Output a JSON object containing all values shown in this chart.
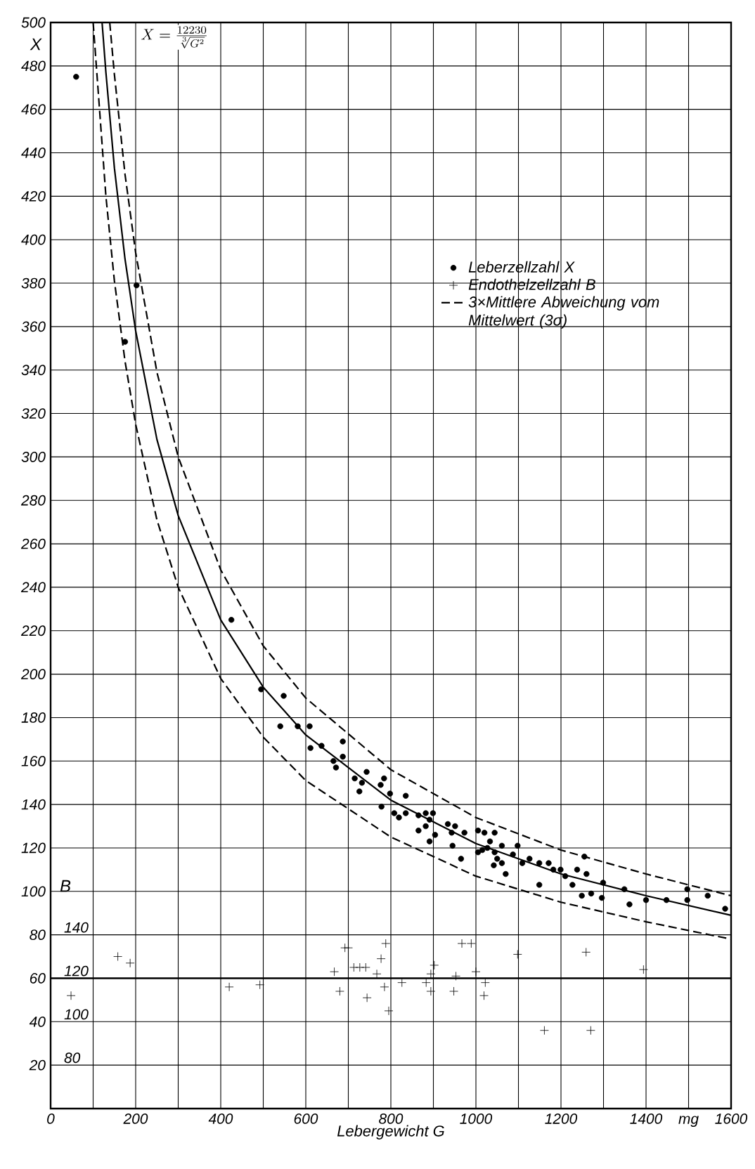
{
  "chart_data": {
    "type": "scatter",
    "xlabel": "Lebergewicht G",
    "ylabel": "X",
    "y2label": "B",
    "annotations": [
      "X=\\frac{12230}{\\sqrt[3]{G^{2}}}",
      "mg"
    ],
    "xlim": [
      0,
      1600
    ],
    "ylim": [
      0,
      500
    ],
    "y2lim": [
      60,
      560
    ],
    "xticks": [
      0,
      {
        "value": 100,
        "label": null
      },
      200,
      {
        "value": 300,
        "label": null
      },
      400,
      {
        "value": 500,
        "label": null
      },
      600,
      {
        "value": 700,
        "label": null
      },
      800,
      {
        "value": 900,
        "label": null
      },
      1000,
      {
        "value": 1100,
        "label": null
      },
      1200,
      {
        "value": 1300,
        "label": null
      },
      1400,
      {
        "value": 1500,
        "label": null
      },
      1600
    ],
    "yticks": [
      20,
      40,
      60,
      80,
      100,
      120,
      140,
      160,
      180,
      200,
      220,
      240,
      260,
      280,
      300,
      320,
      340,
      360,
      380,
      400,
      420,
      440,
      460,
      480,
      500
    ],
    "y2ticks": [
      80,
      100,
      120,
      140
    ],
    "grid": true,
    "legend": "right",
    "ref_lines": [
      {
        "axis": "y2",
        "value": 120,
        "label": null
      }
    ],
    "series": [
      {
        "name": "Leberzellzahl X",
        "marker": "circle",
        "color": "#000000",
        "x": [
          60,
          175,
          202,
          425,
          495,
          548,
          540,
          581,
          609,
          611,
          637,
          687,
          687,
          665,
          671,
          715,
          743,
          732,
          726,
          784,
          776,
          798,
          835,
          778,
          819,
          808,
          835,
          865,
          882,
          899,
          891,
          882,
          865,
          904,
          891,
          934,
          951,
          943,
          973,
          945,
          965,
          1005,
          1005,
          1027,
          1044,
          1033,
          1061,
          1044,
          1061,
          1020,
          1015,
          1042,
          1070,
          1050,
          1087,
          1098,
          1109,
          1126,
          1149,
          1149,
          1171,
          1182,
          1199,
          1210,
          1227,
          1238,
          1255,
          1260,
          1249,
          1271,
          1299,
          1296,
          1349,
          1361,
          1400,
          1448,
          1497,
          1497,
          1545,
          1586
        ],
        "values": [
          475,
          353,
          379,
          225,
          193,
          190,
          176,
          176,
          176,
          166,
          167,
          169,
          162,
          160,
          157,
          152,
          155,
          150,
          146,
          152,
          149,
          145,
          144,
          139,
          134,
          136,
          136,
          135,
          136,
          136,
          133,
          130,
          128,
          126,
          123,
          131,
          130,
          127,
          127,
          121,
          115,
          128,
          118,
          120,
          127,
          123,
          121,
          118,
          113,
          127,
          119,
          112,
          108,
          115,
          117,
          121,
          113,
          115,
          103,
          113,
          113,
          110,
          110,
          107,
          103,
          110,
          116,
          108,
          98,
          99,
          104,
          97,
          101,
          94,
          96,
          96,
          101,
          96,
          98,
          92
        ]
      },
      {
        "name": "Endothelzellzahl B",
        "marker": "cross",
        "axis": "y2",
        "color": "#000000",
        "x": [
          48,
          158,
          187,
          420,
          492,
          667,
          680,
          692,
          700,
          713,
          727,
          741,
          744,
          767,
          777,
          788,
          785,
          795,
          826,
          883,
          894,
          902,
          894,
          948,
          953,
          967,
          989,
          1000,
          1022,
          1019,
          1098,
          1161,
          1259,
          1270,
          1394
        ],
        "values": [
          112,
          130,
          127,
          116,
          117,
          123,
          114,
          134,
          134,
          125,
          125,
          125,
          111,
          122,
          129,
          136,
          116,
          105,
          118,
          118,
          122,
          126,
          114,
          114,
          121,
          136,
          136,
          123,
          118,
          112,
          131,
          96,
          132,
          96,
          124
        ]
      },
      {
        "name": "3×Mittlere Abweichung vom Mittelwert (3σ)",
        "type": "line",
        "marker": "none",
        "line_style": "dashed",
        "color": "#000000",
        "x": [
          139,
          150,
          175,
          200,
          250,
          300,
          400,
          500,
          600,
          800,
          1000,
          1200,
          1400,
          1600
        ],
        "values": [
          500,
          476,
          430,
          394,
          339,
          300,
          248,
          213,
          189,
          156,
          134,
          119,
          108,
          98
        ]
      },
      {
        "type": "line",
        "marker": "none",
        "line_style": "dashed",
        "color": "#000000",
        "x": [
          100,
          130,
          150,
          175,
          200,
          250,
          300,
          400,
          500,
          600,
          800,
          1000,
          1200,
          1400,
          1600
        ],
        "values": [
          500,
          420,
          381,
          344,
          315,
          271,
          240,
          198,
          171,
          151,
          125,
          107,
          95,
          86,
          78
        ]
      },
      {
        "type": "line",
        "marker": "none",
        "line_style": "solid",
        "color": "#000000",
        "x": [
          121,
          130,
          150,
          175,
          200,
          250,
          300,
          400,
          500,
          600,
          800,
          1000,
          1200,
          1400,
          1600
        ],
        "values": [
          500,
          477,
          433,
          391,
          358,
          308,
          273,
          225,
          194,
          172,
          142,
          122,
          108,
          98,
          89
        ]
      }
    ]
  }
}
